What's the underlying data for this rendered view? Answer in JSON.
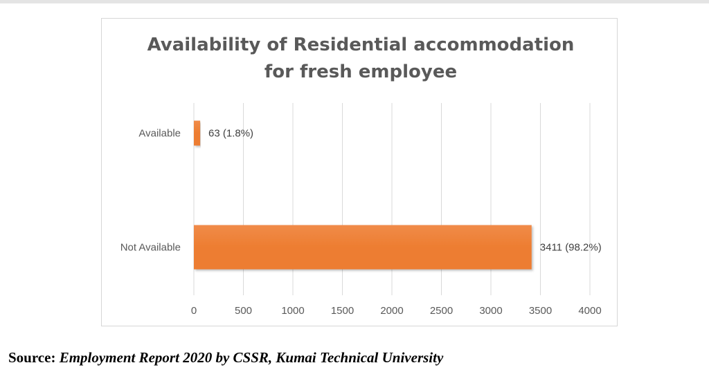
{
  "chart_data": {
    "type": "bar",
    "orientation": "horizontal",
    "title": [
      "Availability of Residential accommodation",
      "for fresh employee"
    ],
    "categories": [
      "Available",
      "Not Available"
    ],
    "values": [
      63,
      3411
    ],
    "data_labels": [
      "63 (1.8%)",
      "3411 (98.2%)"
    ],
    "xlim": [
      0,
      4000
    ],
    "xticks": [
      0,
      500,
      1000,
      1500,
      2000,
      2500,
      3000,
      3500,
      4000
    ],
    "xlabel": "",
    "ylabel": "",
    "grid": "vertical",
    "legend": "none",
    "bar_color": "#ed7d31",
    "bar_color_light": "#f08b49"
  },
  "source": {
    "label": "Source:",
    "text": "Employment Report 2020 by CSSR, Kumai Technical University"
  }
}
